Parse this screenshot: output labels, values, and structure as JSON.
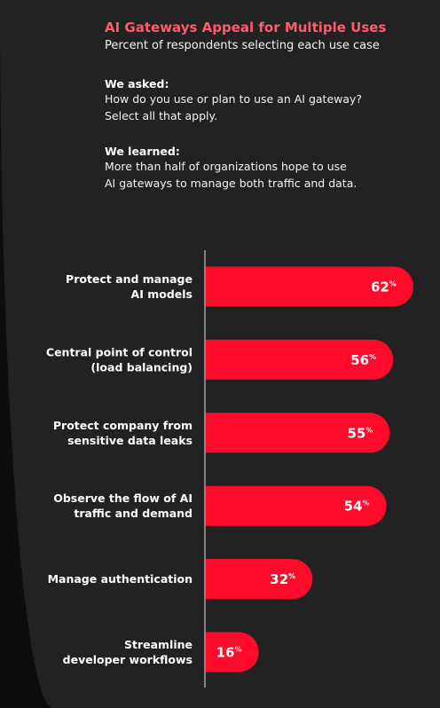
{
  "header": {
    "title": "AI Gateways Appeal for Multiple Uses",
    "subtitle": "Percent of respondents selecting each use case"
  },
  "asked": {
    "heading": "We asked:",
    "lines": [
      "How do you use or plan to use an AI gateway?",
      "Select all that apply."
    ]
  },
  "learned": {
    "heading": "We learned:",
    "lines": [
      "More than half of organizations hope to use",
      "AI gateways to manage both traffic and data."
    ]
  },
  "colors": {
    "bar": "#ff0a2a",
    "panel": "#222222",
    "title": "#ff5a6e",
    "axis": "#9a9a9a"
  },
  "chart_data": {
    "type": "bar",
    "orientation": "horizontal",
    "categories": [
      [
        "Protect and manage",
        "AI models"
      ],
      [
        "Central point of control",
        "(load balancing)"
      ],
      [
        "Protect company from",
        "sensitive data leaks"
      ],
      [
        "Observe the flow of AI",
        "traffic and demand"
      ],
      [
        "Manage authentication"
      ],
      [
        "Streamline",
        "developer workflows"
      ]
    ],
    "values": [
      62,
      56,
      55,
      54,
      32,
      16
    ],
    "unit": "%",
    "xlim": [
      0,
      65
    ],
    "grid": false,
    "legend": "none"
  }
}
